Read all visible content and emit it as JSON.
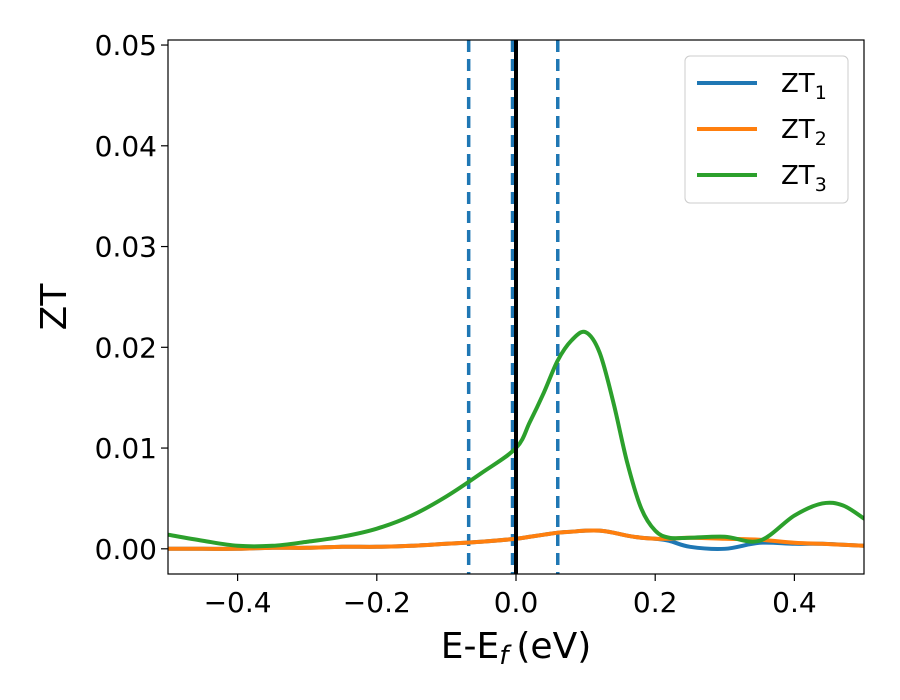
{
  "chart_data": {
    "type": "line",
    "xlabel": "E-E",
    "xlabel_sub": "f",
    "xlabel_unit": "(eV)",
    "ylabel": "ZT",
    "xlim": [
      -0.5,
      0.5
    ],
    "ylim": [
      -0.0025,
      0.0505
    ],
    "xticks": [
      -0.4,
      -0.2,
      0.0,
      0.2,
      0.4
    ],
    "xtick_labels": [
      "−0.4",
      "−0.2",
      "0.0",
      "0.2",
      "0.4"
    ],
    "yticks": [
      0.0,
      0.01,
      0.02,
      0.03,
      0.04,
      0.05
    ],
    "ytick_labels": [
      "0.00",
      "0.01",
      "0.02",
      "0.03",
      "0.04",
      "0.05"
    ],
    "legend_position": "top-right",
    "vlines": [
      {
        "x": -0.068,
        "style": "dashed",
        "color": "#1f77b4"
      },
      {
        "x": -0.005,
        "style": "dashed",
        "color": "#1f77b4"
      },
      {
        "x": 0.06,
        "style": "dashed",
        "color": "#1f77b4"
      },
      {
        "x": 0.0,
        "style": "solid",
        "color": "#000000"
      }
    ],
    "x": [
      -0.5,
      -0.45,
      -0.4,
      -0.35,
      -0.3,
      -0.25,
      -0.2,
      -0.15,
      -0.1,
      -0.05,
      0.0,
      0.02,
      0.04,
      0.06,
      0.08,
      0.1,
      0.12,
      0.14,
      0.16,
      0.18,
      0.2,
      0.22,
      0.25,
      0.3,
      0.35,
      0.4,
      0.44,
      0.47,
      0.5
    ],
    "series": [
      {
        "name": "ZT",
        "name_sub": "1",
        "color": "#1f77b4",
        "values": [
          0.0,
          0.0,
          0.0,
          0.0001,
          0.0001,
          0.0002,
          0.0002,
          0.0003,
          0.0005,
          0.0007,
          0.001,
          0.0012,
          0.0014,
          0.0016,
          0.0017,
          0.0018,
          0.0018,
          0.0016,
          0.0013,
          0.0011,
          0.001,
          0.0008,
          0.0002,
          0.0,
          0.0006,
          0.0005,
          0.0005,
          0.0004,
          0.0003
        ]
      },
      {
        "name": "ZT",
        "name_sub": "2",
        "color": "#ff7f0e",
        "values": [
          0.0,
          0.0,
          0.0,
          0.0001,
          0.0001,
          0.0002,
          0.0002,
          0.0003,
          0.0005,
          0.0007,
          0.001,
          0.0012,
          0.0014,
          0.0016,
          0.0017,
          0.0018,
          0.0018,
          0.0016,
          0.0013,
          0.0011,
          0.001,
          0.001,
          0.0011,
          0.001,
          0.0009,
          0.0006,
          0.0005,
          0.0004,
          0.0003
        ]
      },
      {
        "name": "ZT",
        "name_sub": "3",
        "color": "#2ca02c",
        "values": [
          0.0014,
          0.0008,
          0.0003,
          0.0003,
          0.0007,
          0.0012,
          0.002,
          0.0033,
          0.0052,
          0.0075,
          0.01,
          0.0126,
          0.0155,
          0.0187,
          0.0207,
          0.0215,
          0.0195,
          0.0145,
          0.0085,
          0.004,
          0.0018,
          0.0011,
          0.0011,
          0.0012,
          0.0008,
          0.0033,
          0.0045,
          0.0043,
          0.003
        ]
      }
    ]
  }
}
